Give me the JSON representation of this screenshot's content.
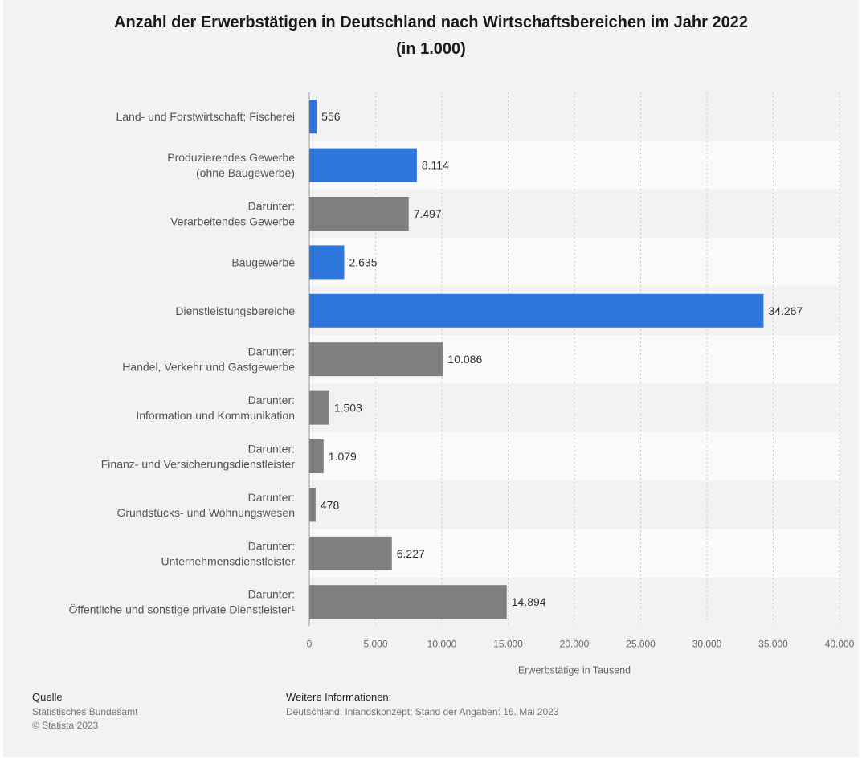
{
  "title_line1": "Anzahl der Erwerbstätigen in Deutschland nach Wirtschaftsbereichen im Jahr 2022",
  "title_line2": "(in 1.000)",
  "chart_data": {
    "type": "bar",
    "orientation": "horizontal",
    "categories": [
      [
        "Land- und Forstwirtschaft; Fischerei"
      ],
      [
        "Produzierendes Gewerbe",
        "(ohne Baugewerbe)"
      ],
      [
        "Darunter:",
        "Verarbeitendes Gewerbe"
      ],
      [
        "Baugewerbe"
      ],
      [
        "Dienstleistungsbereiche"
      ],
      [
        "Darunter:",
        "Handel, Verkehr und Gastgewerbe"
      ],
      [
        "Darunter:",
        "Information und Kommunikation"
      ],
      [
        "Darunter:",
        "Finanz- und Versicherungsdienstleister"
      ],
      [
        "Darunter:",
        "Grundstücks- und Wohnungswesen"
      ],
      [
        "Darunter:",
        "Unternehmensdienstleister"
      ],
      [
        "Darunter:",
        "Öffentliche und sonstige private Dienstleister¹"
      ]
    ],
    "values": [
      556,
      8114,
      7497,
      2635,
      34267,
      10086,
      1503,
      1079,
      478,
      6227,
      14894
    ],
    "value_labels": [
      "556",
      "8.114",
      "7.497",
      "2.635",
      "34.267",
      "10.086",
      "1.503",
      "1.079",
      "478",
      "6.227",
      "14.894"
    ],
    "bar_colors": [
      "#2f76dc",
      "#2f76dc",
      "#7f7f7f",
      "#2f76dc",
      "#2f76dc",
      "#7f7f7f",
      "#7f7f7f",
      "#7f7f7f",
      "#7f7f7f",
      "#7f7f7f",
      "#7f7f7f"
    ],
    "xlim": [
      0,
      40000
    ],
    "xticks": [
      0,
      5000,
      10000,
      15000,
      20000,
      25000,
      30000,
      35000,
      40000
    ],
    "xtick_labels": [
      "0",
      "5.000",
      "10.000",
      "15.000",
      "20.000",
      "25.000",
      "30.000",
      "35.000",
      "40.000"
    ],
    "xlabel": "Erwerbstätige in Tausend",
    "grid": "vertical dotted",
    "row_stripes": [
      "#f2f2f2",
      "#fafafa"
    ]
  },
  "footer": {
    "source_heading": "Quelle",
    "source_lines": [
      "Statistisches Bundesamt",
      "© Statista 2023"
    ],
    "info_heading": "Weitere Informationen:",
    "info_text": "Deutschland; Inlandskonzept; Stand der Angaben: 16. Mai 2023"
  }
}
